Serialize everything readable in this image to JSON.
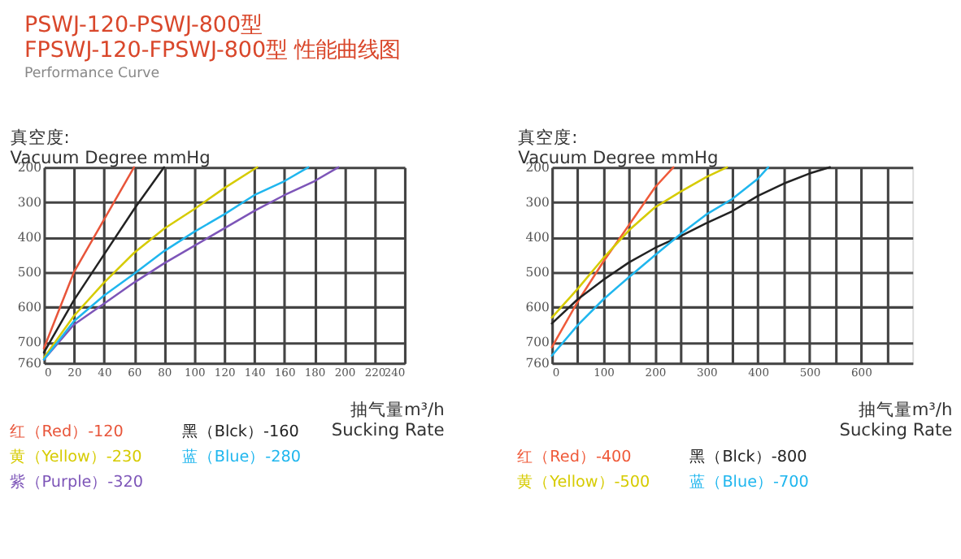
{
  "chart_data": [
    {
      "type": "line",
      "title": "PSWJ-120-PSWJ-800型\nFPSWJ-120-FPSWJ-800型  性能曲线图",
      "subtitle": "Performance Curve",
      "ylabel": "真空度:\nVacuum Degree mmHg",
      "xlabel": "抽气量m³/h\nSucking Rate",
      "xlim": [
        0,
        240
      ],
      "xticks": [
        0,
        20,
        40,
        60,
        80,
        100,
        120,
        140,
        160,
        180,
        200,
        220,
        240
      ],
      "ylim": [
        760,
        200
      ],
      "yticks": [
        200,
        300,
        400,
        500,
        600,
        700,
        760
      ],
      "grid": true,
      "legend": "bottom",
      "line_style": "solid",
      "marker": "none",
      "series": [
        {
          "name": "红（Red）-120",
          "color": "#e8553a",
          "x": [
            0,
            20,
            40,
            60
          ],
          "values": [
            718,
            500,
            350,
            200
          ]
        },
        {
          "name": "黄（Yellow）-230",
          "color": "#d6cb00",
          "x": [
            0,
            20,
            40,
            60,
            80,
            100,
            120,
            142
          ],
          "values": [
            745,
            625,
            530,
            445,
            376,
            320,
            260,
            200
          ]
        },
        {
          "name": "紫（Purple）-320",
          "color": "#7d55b8",
          "x": [
            0,
            20,
            40,
            60,
            80,
            100,
            120,
            140,
            160,
            180,
            196
          ],
          "values": [
            750,
            650,
            590,
            530,
            475,
            425,
            375,
            325,
            280,
            240,
            200
          ]
        },
        {
          "name": "黑（Blck）-160",
          "color": "#222222",
          "x": [
            0,
            20,
            40,
            60,
            80
          ],
          "values": [
            730,
            580,
            450,
            320,
            200
          ]
        },
        {
          "name": "蓝（Blue）-280",
          "color": "#1fb6ee",
          "x": [
            0,
            20,
            40,
            60,
            80,
            100,
            120,
            140,
            160,
            176
          ],
          "values": [
            750,
            640,
            567,
            505,
            440,
            385,
            335,
            280,
            240,
            200
          ]
        }
      ]
    },
    {
      "type": "line",
      "ylabel": "真空度:\nVacuum Degree mmHg",
      "xlabel": "抽气量m³/h\nSucking Rate",
      "xlim": [
        0,
        700
      ],
      "xticks": [
        0,
        {
          "value": 50,
          "label": null
        },
        100,
        {
          "value": 150,
          "label": null
        },
        200,
        {
          "value": 250,
          "label": null
        },
        300,
        {
          "value": 350,
          "label": null
        },
        400,
        {
          "value": 450,
          "label": null
        },
        500,
        {
          "value": 550,
          "label": null
        },
        600,
        {
          "value": 650,
          "label": null
        }
      ],
      "ylim": [
        760,
        200
      ],
      "yticks": [
        200,
        300,
        400,
        500,
        600,
        700,
        760
      ],
      "grid": true,
      "legend": "bottom",
      "line_style": "solid",
      "marker": "none",
      "series": [
        {
          "name": "红（Red）-400",
          "color": "#ef5a3a",
          "x": [
            0,
            50,
            100,
            150,
            200,
            236
          ],
          "values": [
            715,
            585,
            470,
            365,
            258,
            200
          ]
        },
        {
          "name": "黄（Yellow）-500",
          "color": "#d6cb00",
          "x": [
            0,
            50,
            100,
            150,
            200,
            250,
            300,
            340
          ],
          "values": [
            630,
            548,
            460,
            380,
            315,
            270,
            228,
            200
          ]
        },
        {
          "name": "黑（Blck）-800",
          "color": "#222222",
          "x": [
            0,
            50,
            100,
            150,
            200,
            250,
            300,
            350,
            400,
            450,
            500,
            540
          ],
          "values": [
            647,
            578,
            522,
            472,
            431,
            397,
            360,
            326,
            282,
            247,
            218,
            200
          ]
        },
        {
          "name": "蓝（Blue）-700",
          "color": "#1fb6ee",
          "x": [
            0,
            50,
            100,
            150,
            200,
            250,
            300,
            350,
            400,
            420
          ],
          "values": [
            739,
            652,
            578,
            514,
            452,
            391,
            335,
            291,
            233,
            200
          ]
        }
      ]
    }
  ]
}
